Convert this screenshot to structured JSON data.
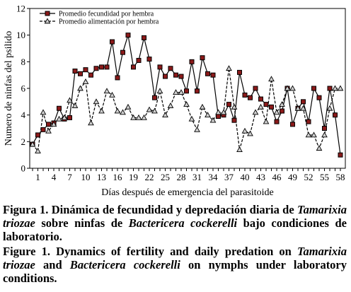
{
  "chart_data": {
    "type": "line",
    "xlabel": "Días después de emergencia del parasitoide",
    "ylabel": "Numero de ninfas del psilido",
    "ylim": [
      0,
      12
    ],
    "yticks": [
      0,
      2,
      4,
      6,
      8,
      10,
      12
    ],
    "xlim": [
      0,
      59
    ],
    "xticks": [
      1,
      4,
      7,
      10,
      13,
      16,
      19,
      22,
      25,
      28,
      31,
      34,
      37,
      40,
      43,
      46,
      49,
      52,
      55,
      58
    ],
    "x": [
      0,
      1,
      2,
      3,
      4,
      5,
      6,
      7,
      8,
      9,
      10,
      11,
      12,
      13,
      14,
      15,
      16,
      17,
      18,
      19,
      20,
      21,
      22,
      23,
      24,
      25,
      26,
      27,
      28,
      29,
      30,
      31,
      32,
      33,
      34,
      35,
      36,
      37,
      38,
      39,
      40,
      41,
      42,
      43,
      44,
      45,
      46,
      47,
      48,
      49,
      50,
      51,
      52,
      53,
      54,
      55,
      56,
      57,
      58
    ],
    "legend_position": "top-left",
    "series": [
      {
        "name": "Promedio fecundidad por hembra",
        "style": "solid",
        "marker": "square",
        "values": [
          1.8,
          2.5,
          2.9,
          3.3,
          3.4,
          4.5,
          3.7,
          3.8,
          7.3,
          7.1,
          7.4,
          7.0,
          7.5,
          7.6,
          7.6,
          9.5,
          6.8,
          8.7,
          10.0,
          7.6,
          8.1,
          9.8,
          8.2,
          5.3,
          7.6,
          6.9,
          7.5,
          7.0,
          6.9,
          5.8,
          8.0,
          5.8,
          8.3,
          7.1,
          7.0,
          3.9,
          4.0,
          4.8,
          3.6,
          7.2,
          5.5,
          5.3,
          6.0,
          5.2,
          4.8,
          4.6,
          3.5,
          4.3,
          6.0,
          3.3,
          4.5,
          5.0,
          3.5,
          6.0,
          5.3,
          3.0,
          6.0,
          4.0,
          1.0
        ]
      },
      {
        "name": "Promedio alimentación por hembra",
        "style": "dashed",
        "marker": "triangle",
        "values": [
          1.8,
          1.3,
          4.2,
          2.8,
          3.3,
          3.7,
          3.8,
          5.1,
          4.7,
          6.0,
          6.5,
          3.4,
          5.0,
          4.3,
          5.8,
          5.5,
          4.3,
          4.2,
          4.6,
          3.8,
          3.8,
          3.8,
          4.4,
          4.3,
          5.8,
          4.0,
          4.7,
          5.7,
          5.7,
          4.8,
          3.7,
          2.9,
          4.6,
          4.0,
          3.6,
          4.2,
          4.2,
          7.5,
          4.6,
          1.4,
          2.8,
          2.6,
          4.2,
          4.6,
          3.5,
          6.7,
          4.2,
          4.8,
          6.0,
          6.0,
          4.5,
          4.5,
          2.5,
          2.5,
          1.5,
          2.5,
          4.5,
          6.0,
          6.0
        ]
      }
    ]
  },
  "caption_es": {
    "lead": "Figura 1.",
    "part1": " Dinámica de fecundidad y depredación diaria de ",
    "species1": "Tamarixia triozae",
    "part2": " sobre ninfas de ",
    "species2": "Bactericera cockerelli",
    "part3": " bajo condiciones de laboratorio."
  },
  "caption_en": {
    "lead": "Figure 1.",
    "part1": " Dynamics of fertility and daily predation on ",
    "species1": "Tamarixia triozae",
    "part2": " and ",
    "species2": "Bactericera cockerelli",
    "part3": " on nymphs under laboratory conditions."
  }
}
